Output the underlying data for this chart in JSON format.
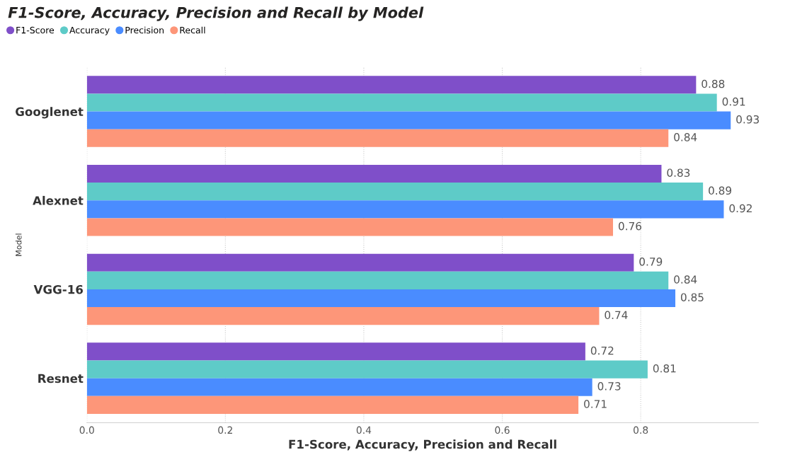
{
  "chart_data": {
    "type": "bar",
    "orientation": "horizontal",
    "title": "F1-Score, Accuracy, Precision and Recall by Model",
    "xlabel": "F1-Score, Accuracy, Precision and Recall",
    "ylabel": "Model",
    "categories": [
      "Googlenet",
      "Alexnet",
      "VGG-16",
      "Resnet"
    ],
    "series": [
      {
        "name": "F1-Score",
        "color": "#7f4fc9",
        "values": [
          0.88,
          0.83,
          0.79,
          0.72
        ]
      },
      {
        "name": "Accuracy",
        "color": "#5ecbc8",
        "values": [
          0.91,
          0.89,
          0.84,
          0.81
        ]
      },
      {
        "name": "Precision",
        "color": "#4a8cff",
        "values": [
          0.93,
          0.92,
          0.85,
          0.73
        ]
      },
      {
        "name": "Recall",
        "color": "#fd9679",
        "values": [
          0.84,
          0.76,
          0.74,
          0.71
        ]
      }
    ],
    "xlim": [
      0,
      0.97
    ],
    "xticks": [
      {
        "value": 0,
        "label": "0.0"
      },
      0.2,
      0.4,
      0.6,
      0.8
    ],
    "grid": "x",
    "legend": "top left",
    "data_labels": true
  }
}
